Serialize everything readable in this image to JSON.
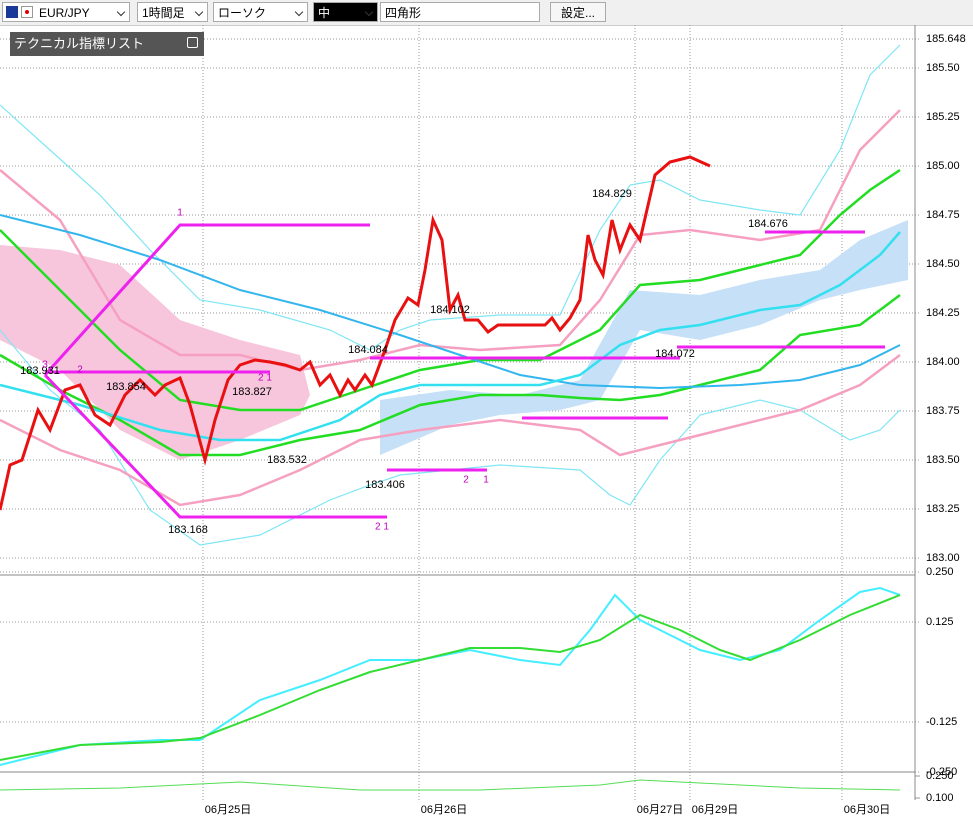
{
  "toolbar": {
    "symbol": "EUR/JPY",
    "timeframe": "1時間足",
    "chart_type": "ローソク",
    "size": "中",
    "drawing": "四角形",
    "settings": "設定..."
  },
  "indicator_list": "テクニカル指標リスト",
  "price_axis": {
    "ylim": [
      183.0,
      185.648
    ],
    "ticks": [
      {
        "value": 185.648,
        "label": "185.648"
      },
      {
        "value": 185.5,
        "label": "185.50"
      },
      185.25,
      {
        "value": 185.0,
        "label": "185.00"
      },
      184.75,
      {
        "value": 184.5,
        "label": "184.50"
      },
      184.25,
      {
        "value": 184.0,
        "label": "184.00"
      },
      183.75,
      {
        "value": 183.5,
        "label": "183.50"
      },
      183.25,
      {
        "value": 183.0,
        "label": "183.00"
      }
    ]
  },
  "macd_axis": {
    "ticks": [
      {
        "value": 0.25,
        "label": "0.250"
      },
      0.125,
      -0.125,
      {
        "value": -0.25,
        "label": "-0.250"
      }
    ]
  },
  "sub_axis": {
    "ticks": [
      {
        "value": 0.25,
        "label": "0.250"
      },
      {
        "value": 0.1,
        "label": "0.100"
      }
    ]
  },
  "dates": [
    "06月25日",
    "06月26日",
    "06月27日",
    "06月29日",
    "06月30日"
  ],
  "price_labels": [
    "184.829",
    "184.676",
    "184.102",
    "184.084",
    "184.072",
    "183.931",
    "183.854",
    "183.827",
    "183.532",
    "183.406",
    "183.168"
  ],
  "wave_labels": [
    "1",
    "2 1",
    "2",
    "1",
    "2 1",
    "3",
    "2"
  ]
}
